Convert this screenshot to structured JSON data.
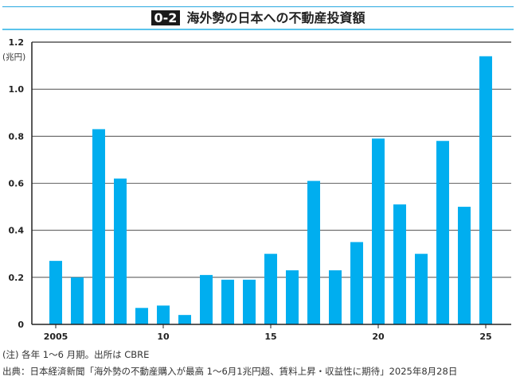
{
  "title": {
    "number": "0-2",
    "text": "海外勢の日本への不動産投資額"
  },
  "chart_data": {
    "type": "bar",
    "title": "海外勢の日本への不動産投資額",
    "ylabel": "(兆円)",
    "xlabel": "",
    "categories": [
      2005,
      2006,
      2007,
      2008,
      2009,
      2010,
      2011,
      2012,
      2013,
      2014,
      2015,
      2016,
      2017,
      2018,
      2019,
      2020,
      2021,
      2022,
      2023,
      2024,
      2025
    ],
    "values": [
      0.27,
      0.2,
      0.83,
      0.62,
      0.07,
      0.08,
      0.04,
      0.21,
      0.19,
      0.19,
      0.3,
      0.23,
      0.61,
      0.23,
      0.35,
      0.79,
      0.51,
      0.3,
      0.78,
      0.5,
      1.14
    ],
    "ylim": [
      0,
      1.2
    ],
    "yticks": [
      "0",
      "0.2",
      "0.4",
      "0.6",
      "0.8",
      "1.0",
      "1.2"
    ],
    "xticks": [
      {
        "value": 2005,
        "label": "2005"
      },
      {
        "value": 2010,
        "label": "10"
      },
      {
        "value": 2015,
        "label": "15"
      },
      {
        "value": 2020,
        "label": "20"
      },
      {
        "value": 2025,
        "label": "25"
      }
    ],
    "grid": true,
    "bar_color": "#00aeef"
  },
  "notes": {
    "note": "(注) 各年 1〜6 月期。出所は CBRE",
    "source": "出典：日本経済新聞「海外勢の不動産購入が最高 1〜6月1兆円超、賃料上昇・収益性に期待」2025年8月28日"
  }
}
